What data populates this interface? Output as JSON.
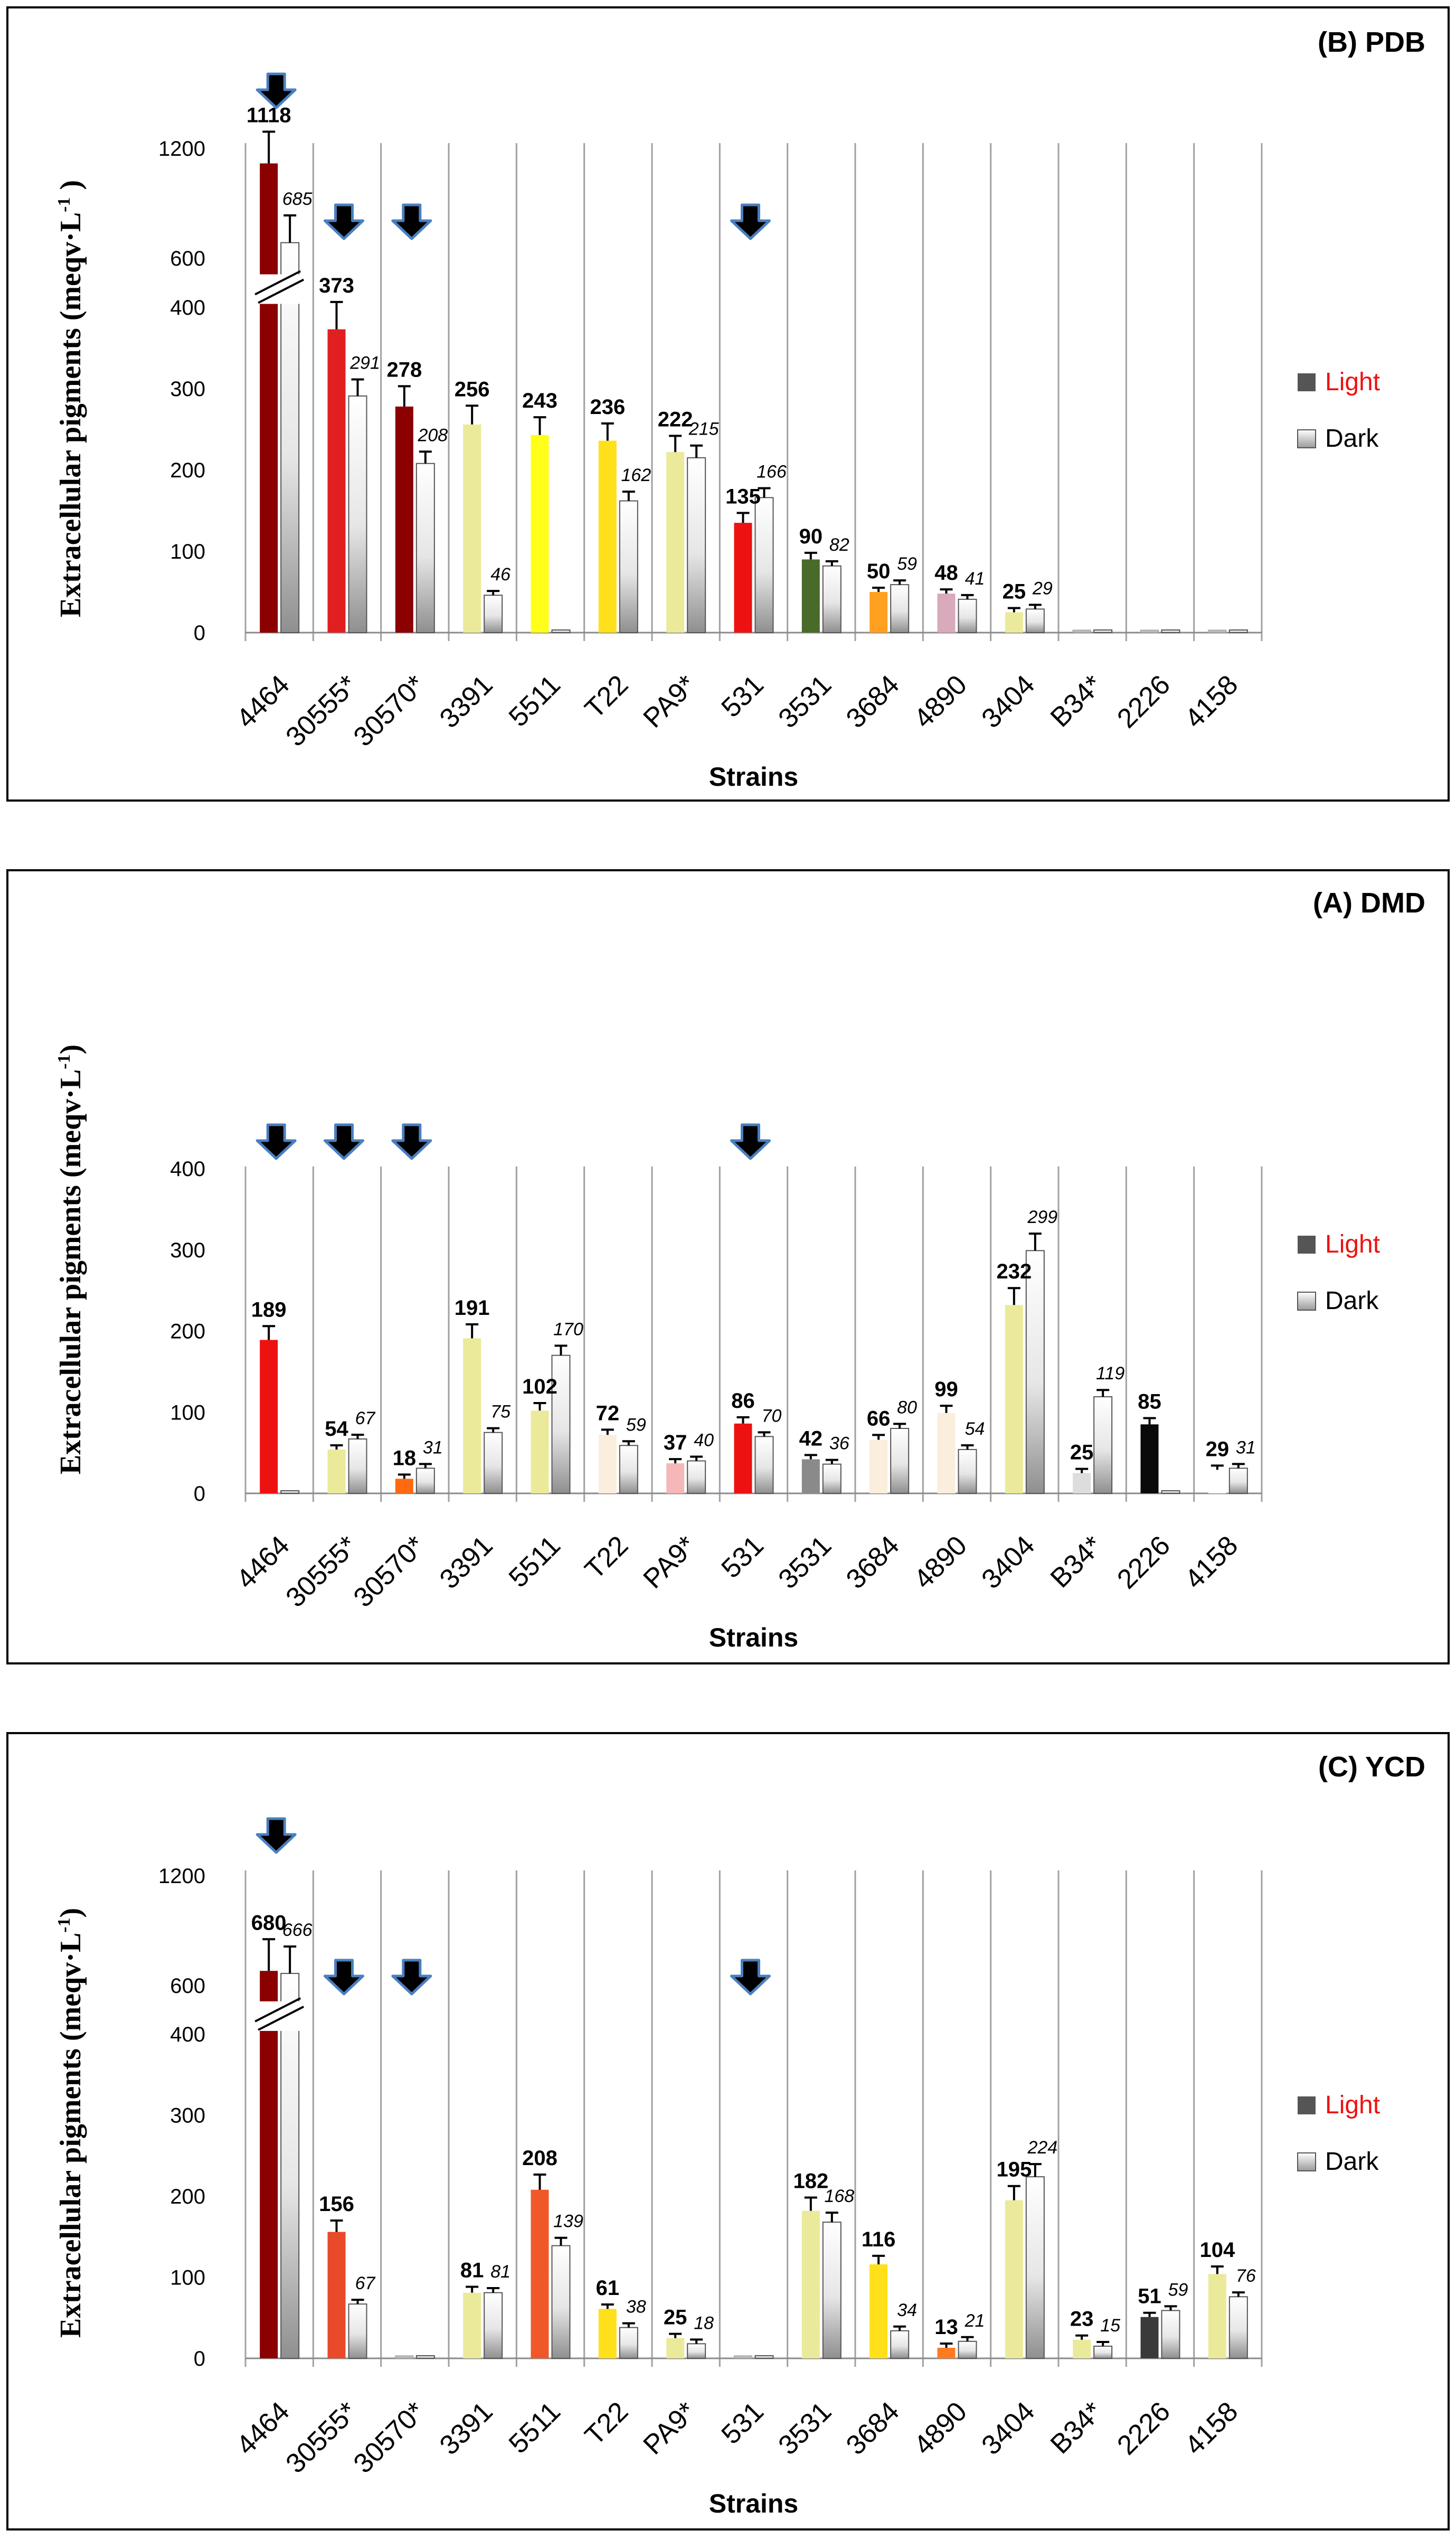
{
  "chart_data": [
    {
      "type": "bar",
      "id": "pdb",
      "title": "(B) PDB",
      "xlabel": "Strains",
      "ylabel": "Extracellular  pigments  (meqv·L",
      "ylabel_sup": "-1",
      "ylabel_end": " )",
      "y_ticks_lower": [
        "0",
        "100",
        "200",
        "300",
        "400"
      ],
      "y_ticks_upper": [
        "600",
        "1200"
      ],
      "ylim_lower": [
        0,
        400
      ],
      "ylim_upper": [
        600,
        1200
      ],
      "categories": [
        "4464",
        "30555*",
        "30570*",
        "3391",
        "5511",
        "T22",
        "PA9*",
        "531",
        "3531",
        "3684",
        "4890",
        "3404",
        "B34*",
        "2226",
        "4158"
      ],
      "series": [
        {
          "name": "Light",
          "values": [
            1118,
            373,
            278,
            256,
            243,
            236,
            222,
            135,
            90,
            50,
            48,
            25,
            0,
            0,
            0
          ],
          "labels": [
            "1118",
            "373",
            "278",
            "256",
            "243",
            "236",
            "222",
            "135",
            "90",
            "50",
            "48",
            "25",
            "",
            "",
            ""
          ],
          "colors": [
            "#8b0000",
            "#e02020",
            "#8b0000",
            "#eaea9a",
            "#ffff1a",
            "#ffe01a",
            "#eaea9a",
            "#ee1111",
            "#4a6a2a",
            "#ffa020",
            "#d8aabb",
            "#eaea9a",
            "#bbbbbb",
            "#bbbbbb",
            "#bbbbbb"
          ]
        },
        {
          "name": "Dark",
          "values": [
            685,
            291,
            208,
            46,
            0,
            162,
            215,
            166,
            82,
            59,
            41,
            29,
            0,
            0,
            0
          ],
          "labels": [
            "685",
            "291",
            "208",
            "46",
            "",
            "162",
            "215",
            "166",
            "82",
            "59",
            "41",
            "29",
            "",
            "",
            ""
          ]
        }
      ],
      "arrows_at": [
        "4464",
        "30555*",
        "30570*",
        "531"
      ],
      "legend": [
        "Light",
        "Dark"
      ]
    },
    {
      "type": "bar",
      "id": "dmd",
      "title": "(A) DMD",
      "xlabel": "Strains",
      "ylabel": "Extracellular  pigments  (meqv·L",
      "ylabel_sup": "-1",
      "ylabel_end": ")",
      "y_ticks_lower": [
        "0",
        "100",
        "200",
        "300",
        "400"
      ],
      "y_ticks_upper": [],
      "ylim_lower": [
        0,
        400
      ],
      "ylim_upper": null,
      "categories": [
        "4464",
        "30555*",
        "30570*",
        "3391",
        "5511",
        "T22",
        "PA9*",
        "531",
        "3531",
        "3684",
        "4890",
        "3404",
        "B34*",
        "2226",
        "4158"
      ],
      "series": [
        {
          "name": "Light",
          "values": [
            189,
            54,
            18,
            191,
            102,
            72,
            37,
            86,
            42,
            66,
            99,
            232,
            25,
            85,
            29
          ],
          "labels": [
            "189",
            "54",
            "18",
            "191",
            "102",
            "72",
            "37",
            "86",
            "42",
            "66",
            "99",
            "232",
            "25",
            "85",
            "29"
          ],
          "colors": [
            "#ee1111",
            "#eaea9a",
            "#ff6a10",
            "#eaea9a",
            "#eaea9a",
            "#fbeedd",
            "#f4b8b8",
            "#ee1111",
            "#8a8a8a",
            "#fbeedd",
            "#fbeedd",
            "#eaea9a",
            "#dddddd",
            "#0a0a0a",
            "#ffffff"
          ]
        },
        {
          "name": "Dark",
          "values": [
            0,
            67,
            31,
            75,
            170,
            59,
            40,
            70,
            36,
            80,
            54,
            299,
            119,
            0,
            31
          ],
          "labels": [
            "",
            "67",
            "31",
            "75",
            "170",
            "59",
            "40",
            "70",
            "36",
            "80",
            "54",
            "299",
            "119",
            "",
            "31"
          ]
        }
      ],
      "arrows_at": [
        "4464",
        "30555*",
        "30570*",
        "531"
      ],
      "legend": [
        "Light",
        "Dark"
      ]
    },
    {
      "type": "bar",
      "id": "ycd",
      "title": "(C) YCD",
      "xlabel": "Strains",
      "ylabel": "Extracellular  pigments  (meqv·L",
      "ylabel_sup": "-1",
      "ylabel_end": ")",
      "y_ticks_lower": [
        "0",
        "100",
        "200",
        "300",
        "400"
      ],
      "y_ticks_upper": [
        "600",
        "1200"
      ],
      "ylim_lower": [
        0,
        400
      ],
      "ylim_upper": [
        600,
        1200
      ],
      "categories": [
        "4464",
        "30555*",
        "30570*",
        "3391",
        "5511",
        "T22",
        "PA9*",
        "531",
        "3531",
        "3684",
        "4890",
        "3404",
        "B34*",
        "2226",
        "4158"
      ],
      "series": [
        {
          "name": "Light",
          "values": [
            680,
            156,
            0,
            81,
            208,
            61,
            25,
            0,
            182,
            116,
            13,
            195,
            23,
            51,
            104
          ],
          "labels": [
            "680",
            "156",
            "",
            "81",
            "208",
            "61",
            "25",
            "",
            "182",
            "116",
            "13",
            "195",
            "23",
            "51",
            "104"
          ],
          "colors": [
            "#8b0000",
            "#e84a2a",
            "#bbbbbb",
            "#eaea9a",
            "#f0582a",
            "#ffe01a",
            "#eaea9a",
            "#bbbbbb",
            "#eaea9a",
            "#ffe01a",
            "#ff7a20",
            "#eaea9a",
            "#eaea9a",
            "#3a3a3a",
            "#eaea9a"
          ]
        },
        {
          "name": "Dark",
          "values": [
            666,
            67,
            0,
            81,
            139,
            38,
            18,
            0,
            168,
            34,
            21,
            224,
            15,
            59,
            76
          ],
          "labels": [
            "666",
            "67",
            "",
            "81",
            "139",
            "38",
            "18",
            "",
            "168",
            "34",
            "21",
            "224",
            "15",
            "59",
            "76"
          ]
        }
      ],
      "arrows_at": [
        "4464",
        "30555*",
        "30570*",
        "531"
      ],
      "legend": [
        "Light",
        "Dark"
      ]
    }
  ],
  "legend_colors": {
    "light_text": "#ee1111",
    "dark_text": "#000000",
    "light_swatch": "#555555"
  }
}
